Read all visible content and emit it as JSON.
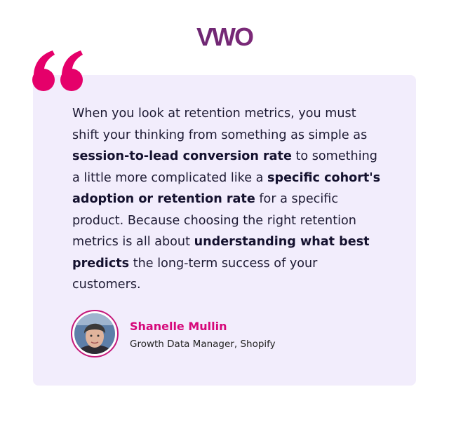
{
  "logo": "VWO",
  "quote": {
    "segments": [
      {
        "text": "When you look at retention metrics, you must shift your thinking from something as simple as ",
        "bold": false
      },
      {
        "text": "session-to-lead conversion rate",
        "bold": true
      },
      {
        "text": " to something a little more complicated like a ",
        "bold": false
      },
      {
        "text": "specific cohort's adoption or retention rate",
        "bold": true
      },
      {
        "text": " for a specific product. Because choosing the right retention metrics is all about ",
        "bold": false
      },
      {
        "text": "understanding what best predicts",
        "bold": true
      },
      {
        "text": " the long-term success of your customers.",
        "bold": false
      }
    ]
  },
  "author": {
    "name": "Shanelle Mullin",
    "role": "Growth Data Manager, Shopify"
  }
}
